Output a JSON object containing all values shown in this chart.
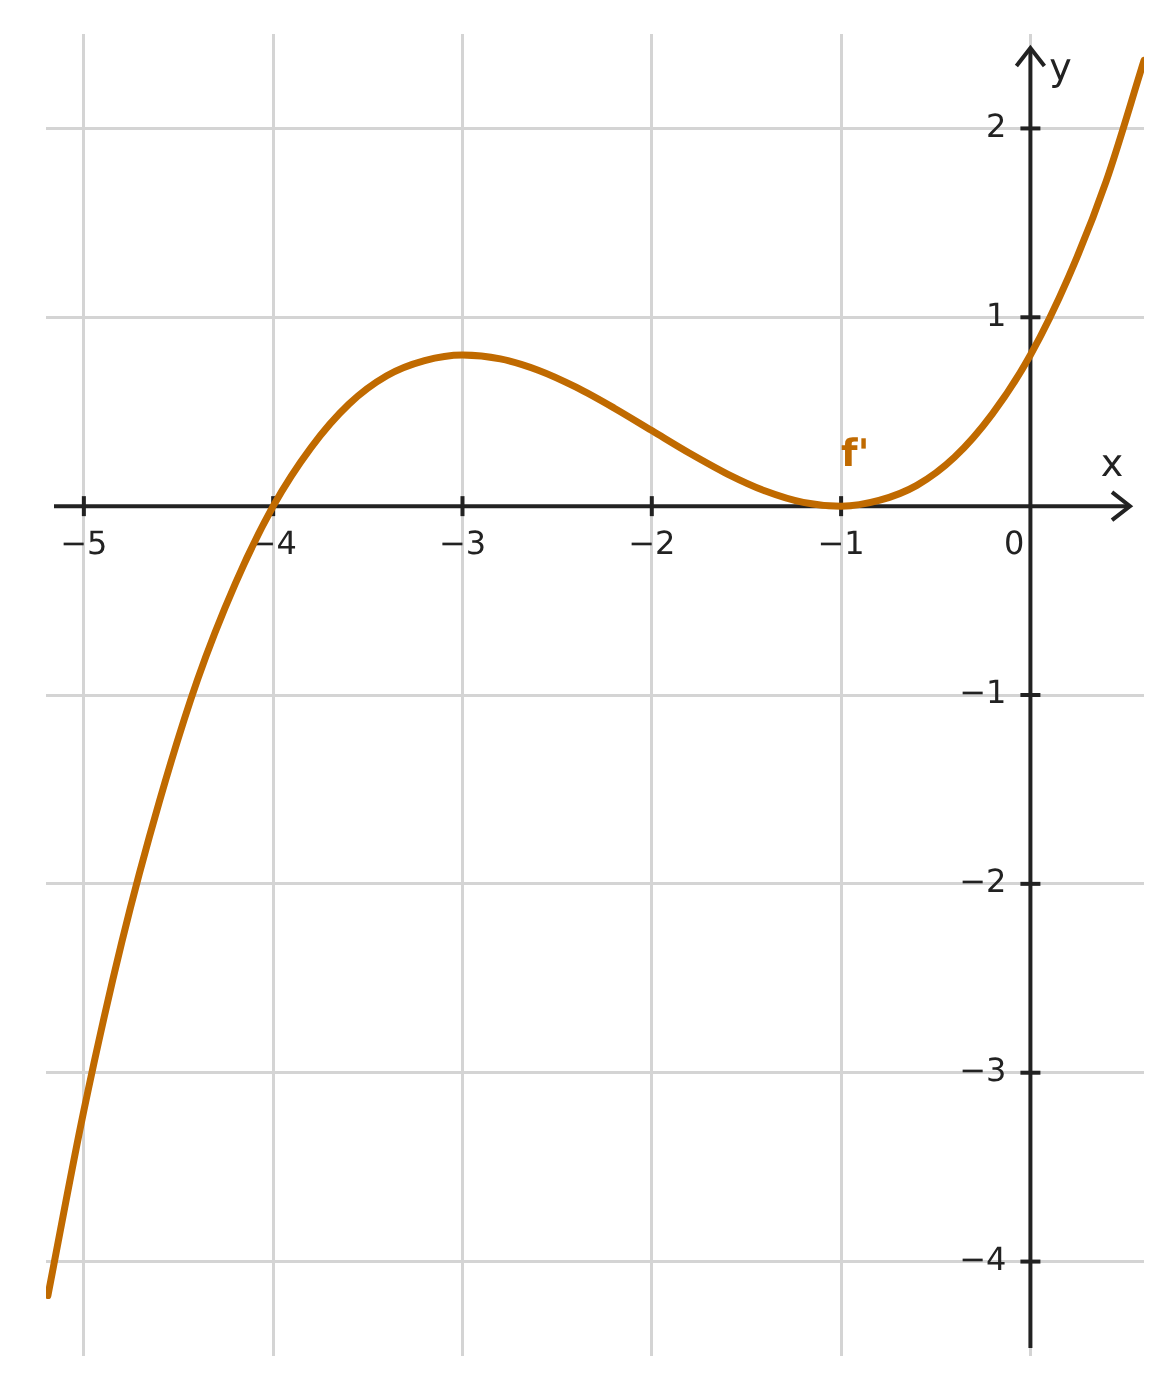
{
  "chart_data": {
    "type": "line",
    "xlabel": "x",
    "ylabel": "y",
    "x": [
      -5.19,
      -5.0,
      -4.8,
      -4.6,
      -4.4,
      -4.2,
      -4.0,
      -3.8,
      -3.6,
      -3.4,
      -3.2,
      -3.0,
      -2.8,
      -2.6,
      -2.4,
      -2.2,
      -2.0,
      -1.8,
      -1.6,
      -1.4,
      -1.2,
      -1.0,
      -0.8,
      -0.6,
      -0.4,
      -0.2,
      0.0,
      0.2,
      0.4,
      0.6
    ],
    "series": [
      {
        "name": "f'",
        "color": "#c06a00",
        "values": [
          -4.18,
          -3.2,
          -2.31,
          -1.56,
          -0.92,
          -0.41,
          0,
          0.31,
          0.54,
          0.69,
          0.77,
          0.8,
          0.78,
          0.72,
          0.63,
          0.52,
          0.4,
          0.28,
          0.17,
          0.08,
          0.02,
          0,
          0.03,
          0.11,
          0.26,
          0.49,
          0.8,
          1.21,
          1.72,
          2.36
        ]
      }
    ],
    "xlim": [
      -5.2,
      0.6
    ],
    "ylim": [
      -4.5,
      2.5
    ],
    "xticks": [
      {
        "value": -5,
        "label": "−5"
      },
      {
        "value": -4,
        "label": "−4"
      },
      {
        "value": -3,
        "label": "−3"
      },
      {
        "value": -2,
        "label": "−2"
      },
      {
        "value": -1,
        "label": "−1"
      },
      {
        "value": 0,
        "label": "0"
      }
    ],
    "yticks": [
      {
        "value": -4,
        "label": "−4"
      },
      {
        "value": -3,
        "label": "−3"
      },
      {
        "value": -2,
        "label": "−2"
      },
      {
        "value": -1,
        "label": "−1"
      },
      {
        "value": 1,
        "label": "1"
      },
      {
        "value": 2,
        "label": "2"
      }
    ],
    "grid": true
  }
}
